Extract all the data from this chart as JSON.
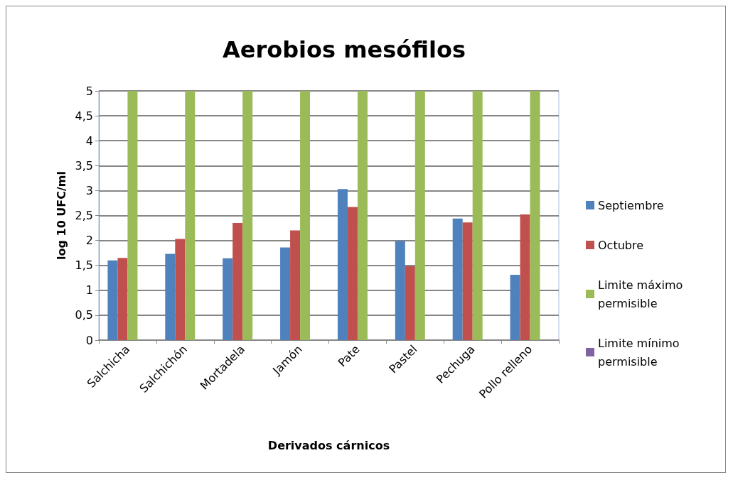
{
  "chart_data": {
    "type": "bar",
    "title": "Aerobios mesófilos",
    "xlabel": "Derivados cárnicos",
    "ylabel": "log 10 UFC/ml",
    "categories": [
      "Salchicha",
      "Salchichón",
      "Mortadela",
      "Jamón",
      "Pate",
      "Pastel",
      "Pechuga",
      "Pollo relleno"
    ],
    "series": [
      {
        "name": "Septiembre",
        "color": "#4f81bd",
        "values": [
          1.6,
          1.73,
          1.64,
          1.86,
          3.03,
          1.99,
          2.44,
          1.31
        ]
      },
      {
        "name": "Octubre",
        "color": "#c0504d",
        "values": [
          1.65,
          2.03,
          2.35,
          2.2,
          2.67,
          1.48,
          2.36,
          2.52
        ]
      },
      {
        "name": "Limite máximo permisible",
        "color": "#9bbb59",
        "values": [
          5,
          5,
          5,
          5,
          5,
          5,
          5,
          5
        ]
      },
      {
        "name": "Limite mínimo permisible",
        "color": "#8064a2",
        "values": [
          0,
          0,
          0,
          0,
          0,
          0,
          0,
          0
        ]
      }
    ],
    "ylim": [
      0,
      5
    ],
    "yticks": [
      0,
      {
        "value": 0.5,
        "label": "0,5"
      },
      1,
      {
        "value": 1.5,
        "label": "1,5"
      },
      2,
      {
        "value": 2.5,
        "label": "2,5"
      },
      3,
      {
        "value": 3.5,
        "label": "3,5"
      },
      4,
      {
        "value": 4.5,
        "label": "4,5"
      },
      5
    ],
    "grid": "y",
    "legend": "right"
  }
}
